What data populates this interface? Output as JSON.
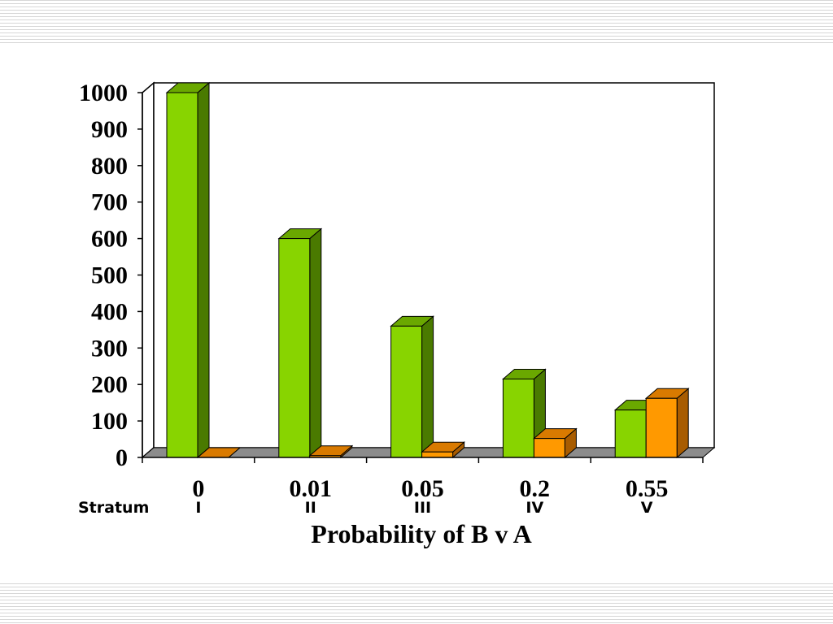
{
  "chart_data": {
    "type": "bar",
    "categories": [
      "0",
      "0.01",
      "0.05",
      "0.2",
      "0.55"
    ],
    "strata": [
      "I",
      "II",
      "III",
      "IV",
      "V"
    ],
    "stratum_label": "Stratum",
    "xlabel": "Probability of B v A",
    "ylabel": "",
    "ylim": [
      0,
      1000
    ],
    "yticks": [
      0,
      100,
      200,
      300,
      400,
      500,
      600,
      700,
      800,
      900,
      1000
    ],
    "grid": false,
    "style": "3d",
    "series": [
      {
        "values": [
          1000,
          600,
          360,
          215,
          130
        ],
        "color": "#88d400",
        "top_color": "#6aa800",
        "side_color": "#4a7a00"
      },
      {
        "values": [
          0,
          5,
          15,
          52,
          162
        ],
        "color": "#ff9900",
        "top_color": "#d97a00",
        "side_color": "#a85c00"
      }
    ]
  }
}
